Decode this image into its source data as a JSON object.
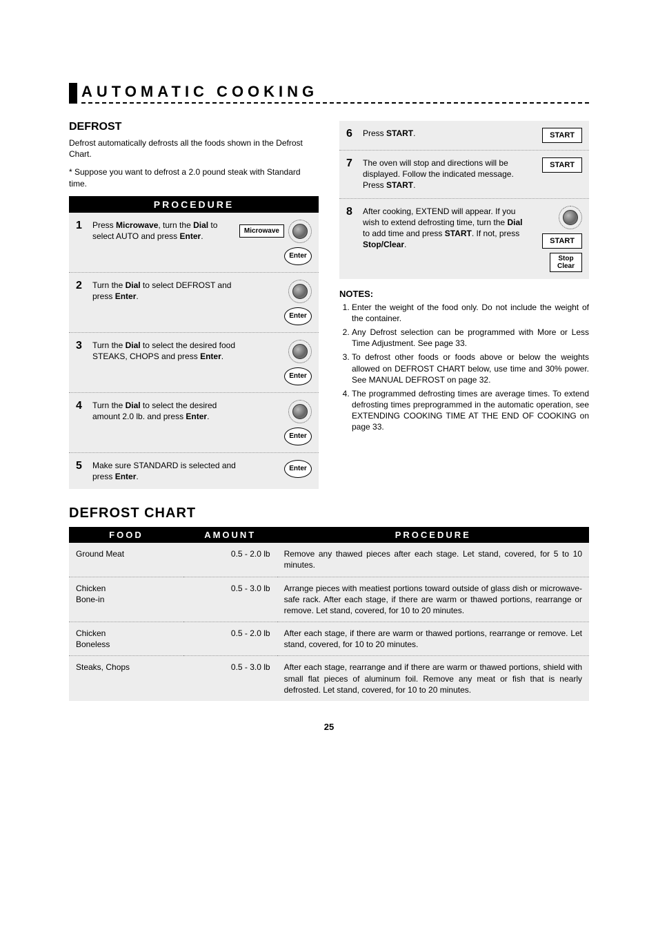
{
  "pageTitle": "AUTOMATIC COOKING",
  "section": {
    "heading": "DEFROST",
    "intro1": "Defrost automatically defrosts all the foods shown in the Defrost Chart.",
    "intro2": "* Suppose you want to defrost a 2.0 pound steak with Standard time."
  },
  "procedureHeader": "PROCEDURE",
  "steps": [
    {
      "num": "1",
      "html": "Press <b>Microwave</b>, turn the <b>Dial</b> to select AUTO and press <b>Enter</b>.",
      "dial": true,
      "microwave": true,
      "enter": true
    },
    {
      "num": "2",
      "html": "Turn the <b>Dial</b> to select DEFROST and press <b>Enter</b>.",
      "dial": true,
      "enter": true
    },
    {
      "num": "3",
      "html": "Turn the <b>Dial</b> to select the desired food STEAKS, CHOPS and press <b>Enter</b>.",
      "dial": true,
      "enter": true
    },
    {
      "num": "4",
      "html": "Turn the <b>Dial</b> to select the desired amount 2.0 lb. and press <b>Enter</b>.",
      "dial": true,
      "enter": true
    },
    {
      "num": "5",
      "html": "Make sure STANDARD is selected and press <b>Enter</b>.",
      "enter": true
    }
  ],
  "rightSteps": [
    {
      "num": "6",
      "html": "Press <b>START</b>.",
      "start": true
    },
    {
      "num": "7",
      "html": "The oven will stop and directions will be displayed. Follow the indicated message. Press <b>START</b>.",
      "start": true
    },
    {
      "num": "8",
      "html": "After cooking, EXTEND will appear. If you wish to extend defrosting time, turn the <b>Dial</b> to add time and press <b>START</b>. If not, press <b>Stop/Clear</b>.",
      "dial": true,
      "start": true,
      "stopclear": true
    }
  ],
  "buttons": {
    "microwave": "Microwave",
    "enter": "Enter",
    "start": "START",
    "stop": "Stop",
    "clear": "Clear"
  },
  "notesHeading": "NOTES:",
  "notes": [
    "Enter the weight of the food only. Do not include the weight of the container.",
    "Any Defrost selection can be programmed with More or Less Time Adjustment. See page 33.",
    "To defrost other foods or foods above or below the weights allowed on DEFROST CHART below, use time and 30% power. See MANUAL DEFROST on page 32.",
    "The programmed defrosting times are average times. To extend defrosting times preprogrammed in the automatic operation, see EXTENDING COOKING TIME AT THE END OF COOKING on page 33."
  ],
  "chartTitle": "DEFROST CHART",
  "chartHeaders": {
    "food": "FOOD",
    "amount": "AMOUNT",
    "procedure": "PROCEDURE"
  },
  "chartRows": [
    {
      "food": "Ground Meat",
      "amount": "0.5 - 2.0 lb",
      "procedure": "Remove any thawed pieces after each stage. Let stand, covered, for 5 to 10 minutes."
    },
    {
      "food": "Chicken\nBone-in",
      "amount": "0.5 - 3.0 lb",
      "procedure": "Arrange pieces with meatiest portions toward outside of glass dish or microwave-safe rack. After each stage, if there are warm or thawed portions, rearrange or remove. Let stand, covered, for 10 to 20 minutes."
    },
    {
      "food": "Chicken\nBoneless",
      "amount": "0.5 - 2.0 lb",
      "procedure": "After each stage, if there are warm or thawed portions, rearrange or remove. Let stand, covered, for 10 to 20 minutes."
    },
    {
      "food": "Steaks, Chops",
      "amount": "0.5 - 3.0 lb",
      "procedure": "After each stage, rearrange and if there are warm or thawed portions, shield with small flat pieces of aluminum foil. Remove any meat or fish that is nearly defrosted. Let stand, covered, for 10 to 20 minutes."
    }
  ],
  "pageNumber": "25",
  "colors": {
    "bg": "#ffffff",
    "panel": "#ededed",
    "header": "#000000",
    "text": "#000000"
  }
}
